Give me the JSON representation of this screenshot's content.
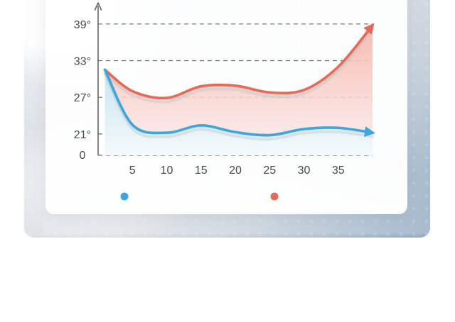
{
  "chart_data": {
    "type": "line",
    "x": [
      1,
      5,
      10,
      15,
      20,
      25,
      30,
      35,
      40
    ],
    "xlim": [
      0,
      40
    ],
    "ylim": [
      17.5,
      42
    ],
    "y_ticks": [
      {
        "value": 21,
        "label": "21°"
      },
      {
        "value": 27,
        "label": "27°"
      },
      {
        "value": 33,
        "label": "33°"
      },
      {
        "value": 39,
        "label": "39°"
      }
    ],
    "origin_label": "0",
    "x_ticks": [
      {
        "value": 5,
        "label": "5"
      },
      {
        "value": 10,
        "label": "10"
      },
      {
        "value": 15,
        "label": "15"
      },
      {
        "value": 20,
        "label": "20"
      },
      {
        "value": 25,
        "label": "25"
      },
      {
        "value": 30,
        "label": "30"
      },
      {
        "value": 35,
        "label": "35"
      }
    ],
    "series": [
      {
        "values": [
          31.5,
          22.5,
          21.2,
          22.4,
          21.3,
          20.8,
          21.8,
          22.0,
          21.2
        ],
        "color": "#3ba7dc",
        "fill_top": "#bfe3ef",
        "fill_bottom": "#eef8fb"
      },
      {
        "values": [
          31.5,
          28.0,
          26.9,
          28.8,
          28.9,
          27.8,
          28.2,
          32.0,
          38.8
        ],
        "color": "#e66b56",
        "fill_top": "#f5b9ad",
        "fill_bottom": "#f9ecee"
      }
    ],
    "grid": true,
    "legend": "bottom"
  }
}
